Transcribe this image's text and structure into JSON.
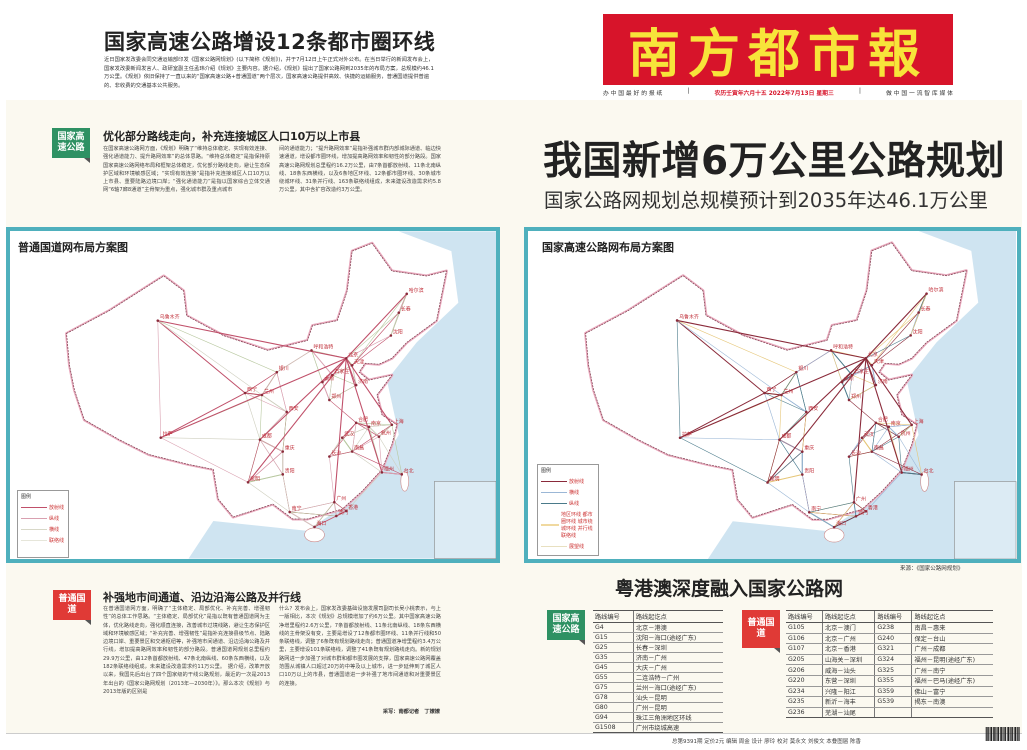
{
  "top": {
    "headline": "国家高速公路增设12条都市圈环线",
    "lead": "近日国家发改委会同交通运输部印发《国家公路网规划》(以下简称《规划》)，并于7月12日上午正式对外公布。在当日举行的新闻发布会上，国家发改委新闻发言人、政研室副主任孟玮介绍《规划》主要内容。据介绍，《规划》提出了国家公路网到2035年的布局方案，总规模约46.1万公里。《规划》依旧保持了一直以来的“国家高速公路+普通国道”两个层次，国家高速公路提供高效、快捷的运输服务，普通国道提供普遍的、非收费的交通基本公共服务。"
  },
  "masthead": {
    "name": "南方都市報",
    "tag_left": "办 中 国 最 好 的 报 纸",
    "date": "农历壬寅年六月十五  2022年7月13日  星期三",
    "tag_right": "做 中 国 一 流 智 库 媒 体",
    "color": "#d7142a",
    "text_color": "#f7e43a"
  },
  "section1": {
    "badge": "国家高速公路",
    "headline": "优化部分路线走向，补充连接城区人口10万以上市县",
    "col1": "在国家高速公路网方面，《规划》明确了“维持总体稳定、实现有效连接、强化通道能力、提升路网效率”的总体思路。“维持总体稳定”是指保持原国家高速公路网络布局和框架总体稳定，优化部分路线走向，避让生态保护区域和环境敏感区域；“实现有效连接”是指补充连接城区人口10万以上市县、重要陆路边境口岸；“强化通道能力”是指以国家综合立体交通网“6轴7廊8通道”主骨架为重点，强化城市群及重点城市",
    "col2": "间的通道能力；“提升路网效率”是指补强城市群内部城际通道、临边快速通道，增设都市圈环线，增加提高路网效率和韧性的部分路段。国家高速公路网规划总里程约16.2万公里，由7条首都放射线、11条北南纵线、18条东西横线，以及6条地区环线、12条都市圈环线、30条城市绕城环线、31条并行线、163条联络线组成，未来建设改造需求约5.8万公里，其中含扩容改造约3万公里。"
  },
  "main_title": "我国新增6万公里公路规划",
  "main_subtitle": "国家公路网规划总规模预计到2035年达46.1万公里",
  "map_left": {
    "title": "普通国道网布局方案图",
    "legend_title": "图例",
    "legend": [
      {
        "label": "放射线",
        "color": "#c0506a"
      },
      {
        "label": "纵线",
        "color": "#d9a0b0"
      },
      {
        "label": "横线",
        "color": "#d8d8c8"
      },
      {
        "label": "联络线",
        "color": "#e6e6da"
      }
    ]
  },
  "map_right": {
    "title": "国家高速公路网布局方案图",
    "legend_title": "图例",
    "legend": [
      {
        "label": "放射线",
        "color": "#8a2a3a"
      },
      {
        "label": "横线",
        "color": "#9bb7d6"
      },
      {
        "label": "纵线",
        "color": "#4a7a8a"
      },
      {
        "label": "地区环线 都市圈环线 城市绕城环线 并行线 联络线",
        "color": "#f0d9a0"
      },
      {
        "label": "展望线",
        "color": "#e8e0c0"
      }
    ]
  },
  "cities": [
    "乌鲁木齐",
    "呼和浩特",
    "北京",
    "天津",
    "哈尔滨",
    "长春",
    "沈阳",
    "银川",
    "石家庄",
    "太原",
    "济南",
    "西宁",
    "兰州",
    "郑州",
    "西安",
    "合肥",
    "南京",
    "上海",
    "杭州",
    "武汉",
    "成都",
    "重庆",
    "长沙",
    "南昌",
    "福州",
    "台北",
    "贵阳",
    "昆明",
    "拉萨",
    "南宁",
    "广州",
    "香港",
    "澳门",
    "海口"
  ],
  "source": "来源：《国家公路网规划》",
  "section2": {
    "badge": "普通国道",
    "headline": "补强地市间通道、沿边沿海公路及并行线",
    "col1": "在普通国道网方面，明确了“主体稳定、局部优化、补充完善、增强韧性”的总体工作思路。“主体稳定、局部优化”是指以既有普通国道网为主体，优化路线走向，强化顺直连接，改善城市过境线路，避让生态保护区域和环境敏感区域；“补充完善、增强韧性”是指补充连接县级节点、陆路边境口岸、重要景区和交通枢纽等，补强地市间通道、沿边沿海公路及并行线，增加提高路网效率和韧性的部分路段。普通国道网规划总里程约29.9万公里，由12条首都放射线、47条北南纵线、60条东西横线，以及182条联络线组成，未来建设改造需求约11万公里。　据介绍，改革开放以来，我国先后出台了四个国家级的干线公路规划，最近的一次是2013年出台的《国家公路网规划（2013年—2030年）》。那么本次《规划》与2013年版的区别是",
    "col2": "什么？发布会上，国家发改委基础设施发展司副司长吴小桃表示，与上一版相比，本次《规划》总规模增加了约6万公里。其中国家高速公路净增里程约2.6万公里，7条首都放射线、11条北南纵线、18条东西横线的主骨架没有变，主要是增设了12条都市圈环线、11条并行线和50条联络线，调整了6条既有规划路线走向；普通国道净增里程约3.4万公里，主要增设101条联络线，调整了41条既有规划路线走向。新的规划路网进一步加强了对城市群和都市圈发展的支撑，国家高速公路网覆盖范围从城镇人口超过20万的中等及以上城市，进一步延伸到了城区人口10万以上的市县，普通国道进一步补强了地市间通道和对重要景区的连接。",
    "byline": "采写：南都记者　丁嫽嫽"
  },
  "gba": {
    "title": "粤港澳深度融入国家公路网",
    "expressway": {
      "badge": "国家高速公路",
      "headers": [
        "路线编号",
        "路线起讫点"
      ],
      "rows": [
        [
          "G4",
          "北京－港澳"
        ],
        [
          "G15",
          "沈阳－海口(途经广东)"
        ],
        [
          "G25",
          "长春－深圳"
        ],
        [
          "G35",
          "济南－广州"
        ],
        [
          "G45",
          "大庆－广州"
        ],
        [
          "G55",
          "二连浩特－广州"
        ],
        [
          "G75",
          "兰州－海口(途经广东)"
        ],
        [
          "G78",
          "汕头－昆明"
        ],
        [
          "G80",
          "广州－昆明"
        ],
        [
          "G94",
          "珠江三角洲地区环线"
        ],
        [
          "G1508",
          "广州市绕城高速"
        ]
      ]
    },
    "national": {
      "badge": "普通国道",
      "headers": [
        "路线编号",
        "路线起讫点",
        "路线编号",
        "路线起讫点"
      ],
      "rows": [
        [
          "G105",
          "北京－澳门",
          "G238",
          "南昌－惠来"
        ],
        [
          "G106",
          "北京－广州",
          "G240",
          "保定－台山"
        ],
        [
          "G107",
          "北京－香港",
          "G321",
          "广州－成都"
        ],
        [
          "G205",
          "山海关－深圳",
          "G324",
          "福州－昆明(途经广东)"
        ],
        [
          "G206",
          "威海－汕头",
          "G325",
          "广州－南宁"
        ],
        [
          "G220",
          "东营－深圳",
          "G355",
          "福州－巴马(途经广东)"
        ],
        [
          "G234",
          "兴隆－阳江",
          "G359",
          "佛山－富宁"
        ],
        [
          "G235",
          "新沂－海丰",
          "G539",
          "揭东－南澳"
        ],
        [
          "G236",
          "芜湖－汕尾",
          "",
          ""
        ]
      ]
    }
  },
  "footer": "总第9391期  定价2元  编辑 周金  设计 廖玲  校对 莫永文 刘俊文  本叠图届 陈香"
}
